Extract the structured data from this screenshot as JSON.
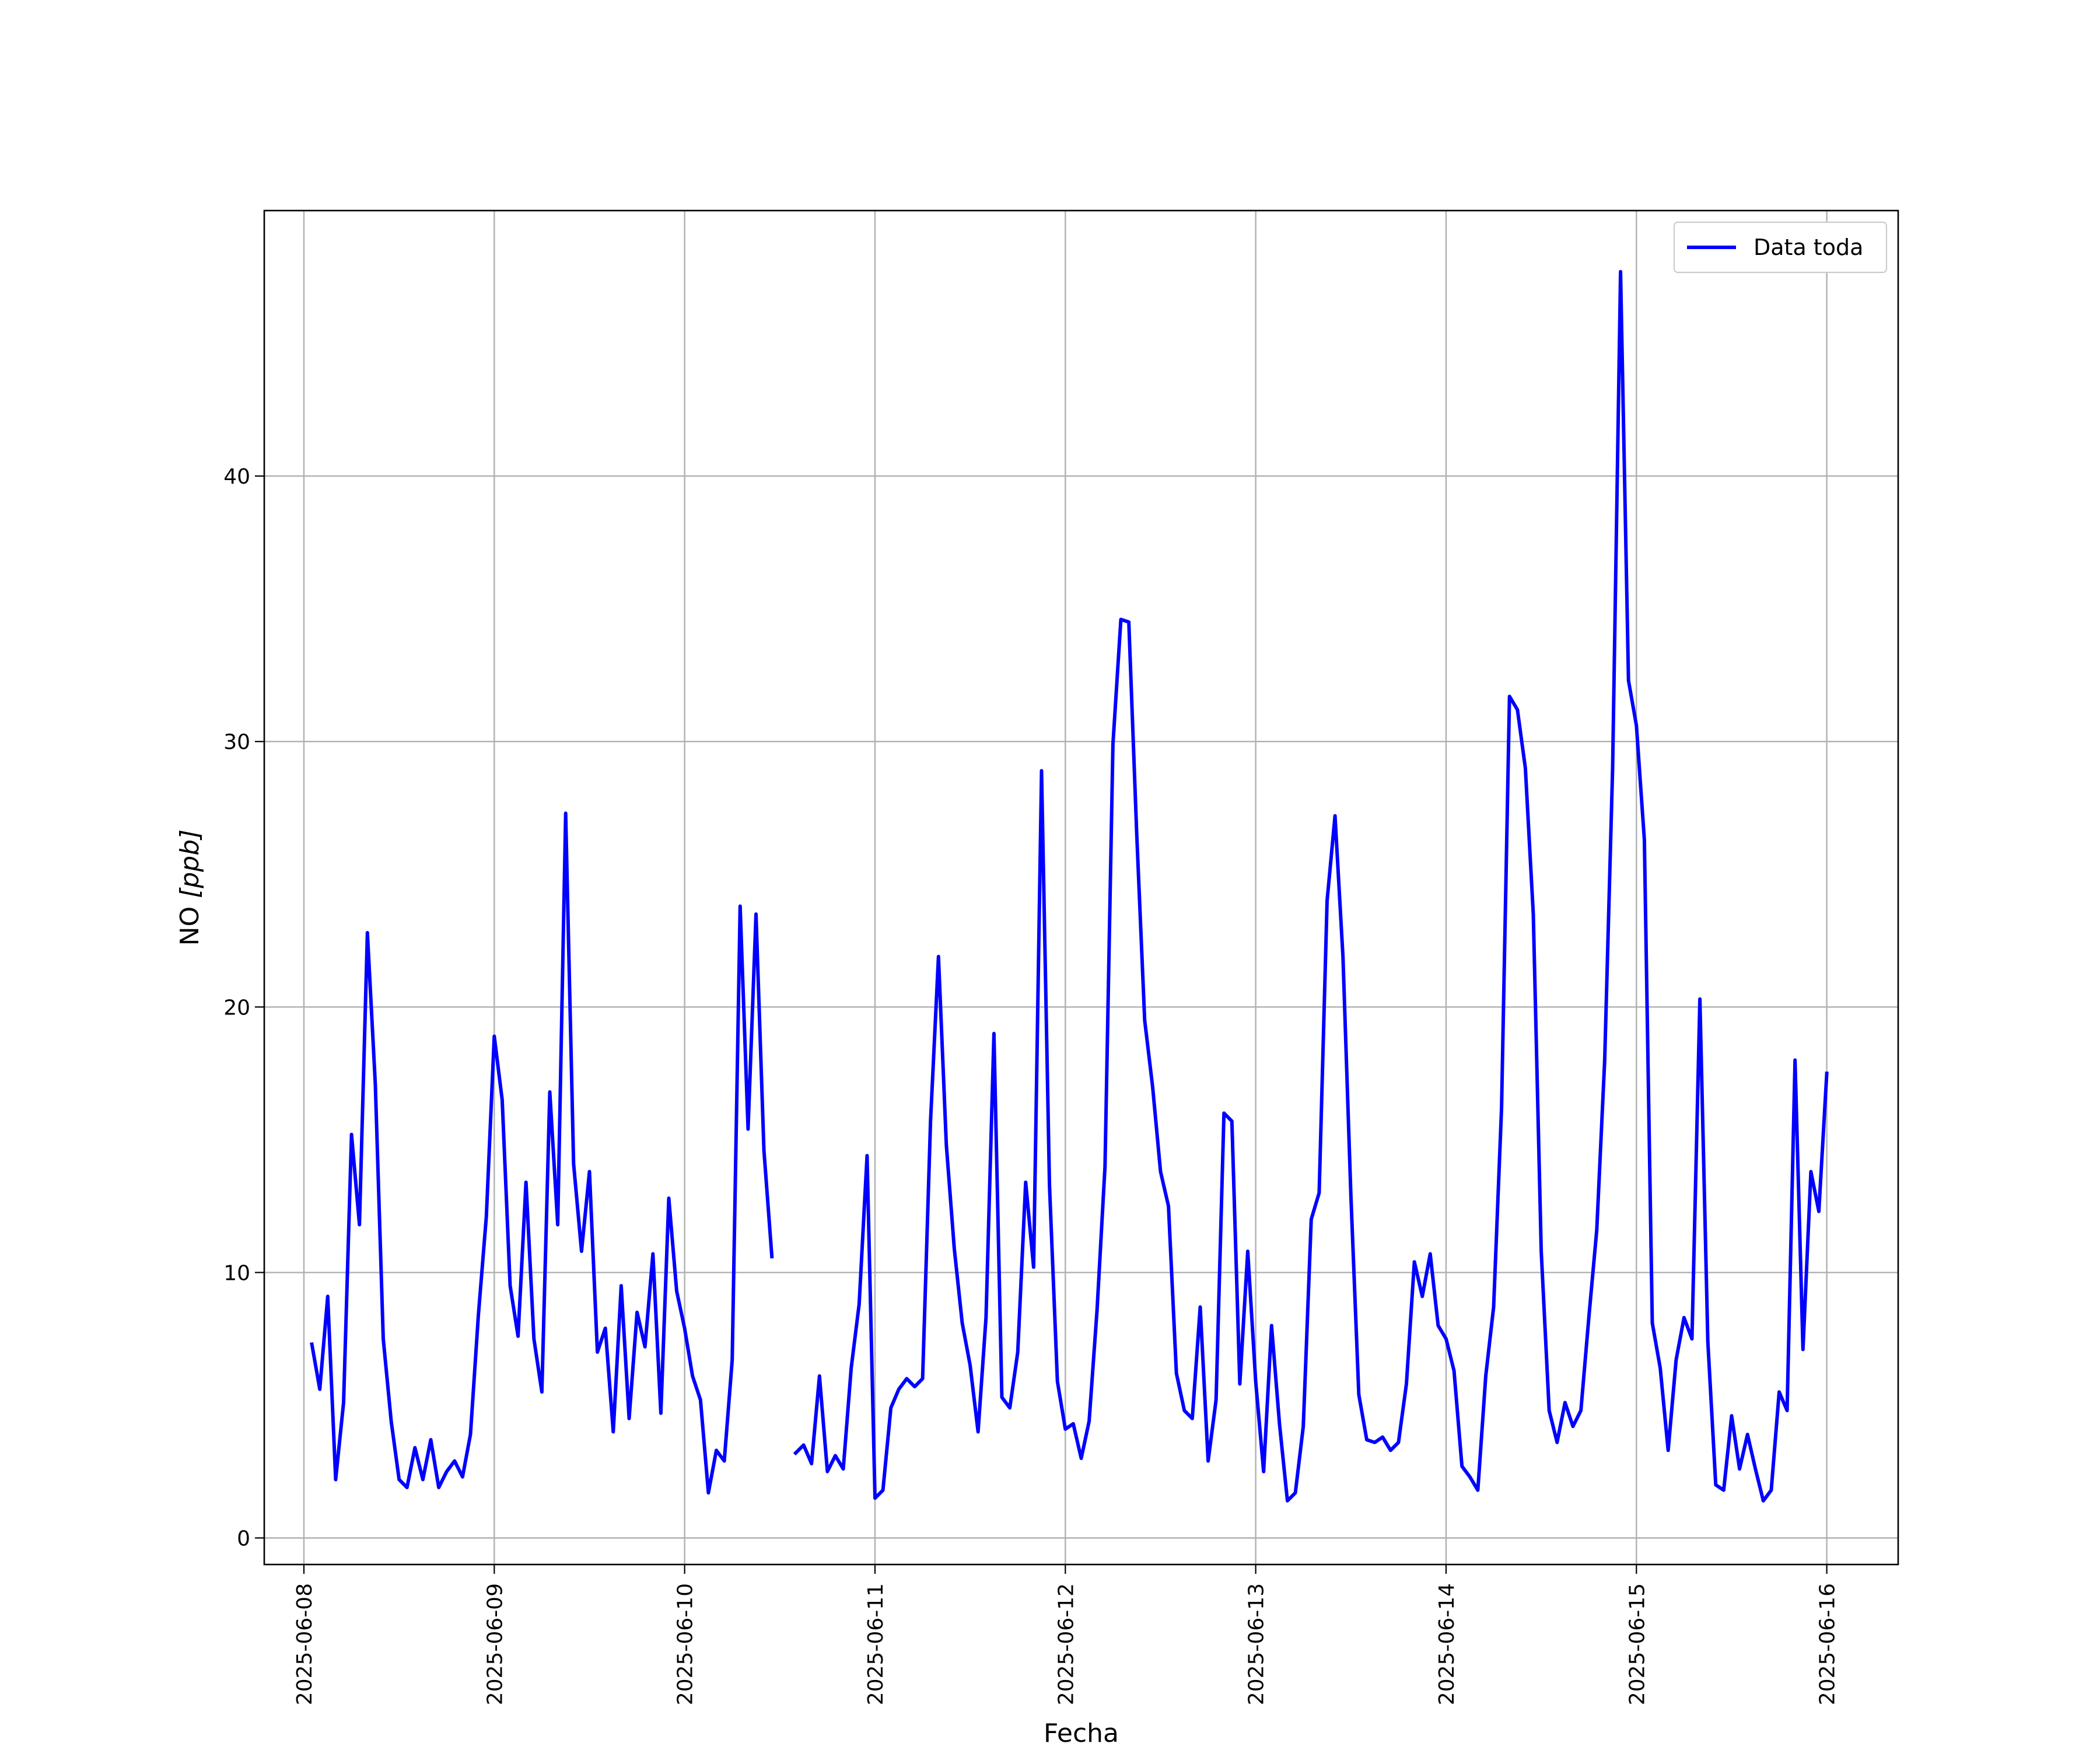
{
  "chart_data": {
    "type": "line",
    "xlabel": "Fecha",
    "ylabel_main": "NO ",
    "ylabel_unit": "[ppb]",
    "x_ticks": [
      "2025-06-08",
      "2025-06-09",
      "2025-06-10",
      "2025-06-11",
      "2025-06-12",
      "2025-06-13",
      "2025-06-14",
      "2025-06-15",
      "2025-06-16"
    ],
    "xlim": [
      "2025-06-07T19:00",
      "2025-06-16T09:00"
    ],
    "y_ticks": [
      0,
      10,
      20,
      30,
      40
    ],
    "ylim": [
      -1,
      50
    ],
    "grid": true,
    "legend_position": "top-right",
    "series": [
      {
        "name": "Data toda",
        "color": "#0000ff",
        "points": [
          [
            "2025-06-08T01:00",
            7.3
          ],
          [
            "2025-06-08T02:00",
            5.6
          ],
          [
            "2025-06-08T03:00",
            9.1
          ],
          [
            "2025-06-08T04:00",
            2.2
          ],
          [
            "2025-06-08T05:00",
            5.1
          ],
          [
            "2025-06-08T06:00",
            15.2
          ],
          [
            "2025-06-08T07:00",
            11.8
          ],
          [
            "2025-06-08T08:00",
            22.8
          ],
          [
            "2025-06-08T09:00",
            17.1
          ],
          [
            "2025-06-08T10:00",
            7.5
          ],
          [
            "2025-06-08T11:00",
            4.4
          ],
          [
            "2025-06-08T12:00",
            2.2
          ],
          [
            "2025-06-08T13:00",
            1.9
          ],
          [
            "2025-06-08T14:00",
            3.4
          ],
          [
            "2025-06-08T15:00",
            2.2
          ],
          [
            "2025-06-08T16:00",
            3.7
          ],
          [
            "2025-06-08T17:00",
            1.9
          ],
          [
            "2025-06-08T18:00",
            2.5
          ],
          [
            "2025-06-08T19:00",
            2.9
          ],
          [
            "2025-06-08T20:00",
            2.3
          ],
          [
            "2025-06-08T21:00",
            3.9
          ],
          [
            "2025-06-08T22:00",
            8.4
          ],
          [
            "2025-06-08T23:00",
            12.1
          ],
          [
            "2025-06-09T00:00",
            18.9
          ],
          [
            "2025-06-09T01:00",
            16.5
          ],
          [
            "2025-06-09T02:00",
            9.5
          ],
          [
            "2025-06-09T03:00",
            7.6
          ],
          [
            "2025-06-09T04:00",
            13.4
          ],
          [
            "2025-06-09T05:00",
            7.5
          ],
          [
            "2025-06-09T06:00",
            5.5
          ],
          [
            "2025-06-09T07:00",
            16.8
          ],
          [
            "2025-06-09T08:00",
            11.8
          ],
          [
            "2025-06-09T09:00",
            27.3
          ],
          [
            "2025-06-09T10:00",
            14.1
          ],
          [
            "2025-06-09T11:00",
            10.8
          ],
          [
            "2025-06-09T12:00",
            13.8
          ],
          [
            "2025-06-09T13:00",
            7.0
          ],
          [
            "2025-06-09T14:00",
            7.9
          ],
          [
            "2025-06-09T15:00",
            4.0
          ],
          [
            "2025-06-09T16:00",
            9.5
          ],
          [
            "2025-06-09T17:00",
            4.5
          ],
          [
            "2025-06-09T18:00",
            8.5
          ],
          [
            "2025-06-09T19:00",
            7.2
          ],
          [
            "2025-06-09T20:00",
            10.7
          ],
          [
            "2025-06-09T21:00",
            4.7
          ],
          [
            "2025-06-09T22:00",
            12.8
          ],
          [
            "2025-06-09T23:00",
            9.3
          ],
          [
            "2025-06-10T00:00",
            7.9
          ],
          [
            "2025-06-10T01:00",
            6.1
          ],
          [
            "2025-06-10T02:00",
            5.2
          ],
          [
            "2025-06-10T03:00",
            1.7
          ],
          [
            "2025-06-10T04:00",
            3.3
          ],
          [
            "2025-06-10T05:00",
            2.9
          ],
          [
            "2025-06-10T06:00",
            6.7
          ],
          [
            "2025-06-10T07:00",
            23.8
          ],
          [
            "2025-06-10T08:00",
            15.4
          ],
          [
            "2025-06-10T09:00",
            23.5
          ],
          [
            "2025-06-10T10:00",
            14.6
          ],
          [
            "2025-06-10T11:00",
            10.6
          ],
          [
            "2025-06-10T12:00",
            null
          ],
          [
            "2025-06-10T13:00",
            null
          ],
          [
            "2025-06-10T14:00",
            3.2
          ],
          [
            "2025-06-10T15:00",
            3.5
          ],
          [
            "2025-06-10T16:00",
            2.8
          ],
          [
            "2025-06-10T17:00",
            6.1
          ],
          [
            "2025-06-10T18:00",
            2.5
          ],
          [
            "2025-06-10T19:00",
            3.1
          ],
          [
            "2025-06-10T20:00",
            2.6
          ],
          [
            "2025-06-10T21:00",
            6.4
          ],
          [
            "2025-06-10T22:00",
            8.8
          ],
          [
            "2025-06-10T23:00",
            14.4
          ],
          [
            "2025-06-11T00:00",
            1.5
          ],
          [
            "2025-06-11T01:00",
            1.8
          ],
          [
            "2025-06-11T02:00",
            4.9
          ],
          [
            "2025-06-11T03:00",
            5.6
          ],
          [
            "2025-06-11T04:00",
            6.0
          ],
          [
            "2025-06-11T05:00",
            5.7
          ],
          [
            "2025-06-11T06:00",
            6.0
          ],
          [
            "2025-06-11T07:00",
            15.7
          ],
          [
            "2025-06-11T08:00",
            21.9
          ],
          [
            "2025-06-11T09:00",
            14.8
          ],
          [
            "2025-06-11T10:00",
            10.9
          ],
          [
            "2025-06-11T11:00",
            8.1
          ],
          [
            "2025-06-11T12:00",
            6.5
          ],
          [
            "2025-06-11T13:00",
            4.0
          ],
          [
            "2025-06-11T14:00",
            8.3
          ],
          [
            "2025-06-11T15:00",
            19.0
          ],
          [
            "2025-06-11T16:00",
            5.3
          ],
          [
            "2025-06-11T17:00",
            4.9
          ],
          [
            "2025-06-11T18:00",
            7.0
          ],
          [
            "2025-06-11T19:00",
            13.4
          ],
          [
            "2025-06-11T20:00",
            10.2
          ],
          [
            "2025-06-11T21:00",
            28.9
          ],
          [
            "2025-06-11T22:00",
            13.3
          ],
          [
            "2025-06-11T23:00",
            5.9
          ],
          [
            "2025-06-12T00:00",
            4.1
          ],
          [
            "2025-06-12T01:00",
            4.3
          ],
          [
            "2025-06-12T02:00",
            3.0
          ],
          [
            "2025-06-12T03:00",
            4.4
          ],
          [
            "2025-06-12T04:00",
            8.6
          ],
          [
            "2025-06-12T05:00",
            14.0
          ],
          [
            "2025-06-12T06:00",
            29.9
          ],
          [
            "2025-06-12T07:00",
            34.6
          ],
          [
            "2025-06-12T08:00",
            34.5
          ],
          [
            "2025-06-12T09:00",
            26.5
          ],
          [
            "2025-06-12T10:00",
            19.5
          ],
          [
            "2025-06-12T11:00",
            17.0
          ],
          [
            "2025-06-12T12:00",
            13.8
          ],
          [
            "2025-06-12T13:00",
            12.5
          ],
          [
            "2025-06-12T14:00",
            6.2
          ],
          [
            "2025-06-12T15:00",
            4.8
          ],
          [
            "2025-06-12T16:00",
            4.5
          ],
          [
            "2025-06-12T17:00",
            8.7
          ],
          [
            "2025-06-12T18:00",
            2.9
          ],
          [
            "2025-06-12T19:00",
            5.2
          ],
          [
            "2025-06-12T20:00",
            16.0
          ],
          [
            "2025-06-12T21:00",
            15.7
          ],
          [
            "2025-06-12T22:00",
            5.8
          ],
          [
            "2025-06-12T23:00",
            10.8
          ],
          [
            "2025-06-13T00:00",
            5.9
          ],
          [
            "2025-06-13T01:00",
            2.5
          ],
          [
            "2025-06-13T02:00",
            8.0
          ],
          [
            "2025-06-13T03:00",
            4.3
          ],
          [
            "2025-06-13T04:00",
            1.4
          ],
          [
            "2025-06-13T05:00",
            1.7
          ],
          [
            "2025-06-13T06:00",
            4.2
          ],
          [
            "2025-06-13T07:00",
            12.0
          ],
          [
            "2025-06-13T08:00",
            13.0
          ],
          [
            "2025-06-13T09:00",
            24.0
          ],
          [
            "2025-06-13T10:00",
            27.2
          ],
          [
            "2025-06-13T11:00",
            21.9
          ],
          [
            "2025-06-13T12:00",
            12.9
          ],
          [
            "2025-06-13T13:00",
            5.4
          ],
          [
            "2025-06-13T14:00",
            3.7
          ],
          [
            "2025-06-13T15:00",
            3.6
          ],
          [
            "2025-06-13T16:00",
            3.8
          ],
          [
            "2025-06-13T17:00",
            3.3
          ],
          [
            "2025-06-13T18:00",
            3.6
          ],
          [
            "2025-06-13T19:00",
            5.8
          ],
          [
            "2025-06-13T20:00",
            10.4
          ],
          [
            "2025-06-13T21:00",
            9.1
          ],
          [
            "2025-06-13T22:00",
            10.7
          ],
          [
            "2025-06-13T23:00",
            8.0
          ],
          [
            "2025-06-14T00:00",
            7.5
          ],
          [
            "2025-06-14T01:00",
            6.3
          ],
          [
            "2025-06-14T02:00",
            2.7
          ],
          [
            "2025-06-14T03:00",
            2.3
          ],
          [
            "2025-06-14T04:00",
            1.8
          ],
          [
            "2025-06-14T05:00",
            6.1
          ],
          [
            "2025-06-14T06:00",
            8.7
          ],
          [
            "2025-06-14T07:00",
            16.2
          ],
          [
            "2025-06-14T08:00",
            31.7
          ],
          [
            "2025-06-14T09:00",
            31.2
          ],
          [
            "2025-06-14T10:00",
            29.0
          ],
          [
            "2025-06-14T11:00",
            23.5
          ],
          [
            "2025-06-14T12:00",
            10.8
          ],
          [
            "2025-06-14T13:00",
            4.8
          ],
          [
            "2025-06-14T14:00",
            3.6
          ],
          [
            "2025-06-14T15:00",
            5.1
          ],
          [
            "2025-06-14T16:00",
            4.2
          ],
          [
            "2025-06-14T17:00",
            4.8
          ],
          [
            "2025-06-14T18:00",
            8.3
          ],
          [
            "2025-06-14T19:00",
            11.6
          ],
          [
            "2025-06-14T20:00",
            18.0
          ],
          [
            "2025-06-14T21:00",
            29.0
          ],
          [
            "2025-06-14T22:00",
            47.7
          ],
          [
            "2025-06-14T23:00",
            32.3
          ],
          [
            "2025-06-15T00:00",
            30.6
          ],
          [
            "2025-06-15T01:00",
            26.3
          ],
          [
            "2025-06-15T02:00",
            8.1
          ],
          [
            "2025-06-15T03:00",
            6.4
          ],
          [
            "2025-06-15T04:00",
            3.3
          ],
          [
            "2025-06-15T05:00",
            6.7
          ],
          [
            "2025-06-15T06:00",
            8.3
          ],
          [
            "2025-06-15T07:00",
            7.5
          ],
          [
            "2025-06-15T08:00",
            20.3
          ],
          [
            "2025-06-15T09:00",
            7.4
          ],
          [
            "2025-06-15T10:00",
            2.0
          ],
          [
            "2025-06-15T11:00",
            1.8
          ],
          [
            "2025-06-15T12:00",
            4.6
          ],
          [
            "2025-06-15T13:00",
            2.6
          ],
          [
            "2025-06-15T14:00",
            3.9
          ],
          [
            "2025-06-15T15:00",
            2.6
          ],
          [
            "2025-06-15T16:00",
            1.4
          ],
          [
            "2025-06-15T17:00",
            1.8
          ],
          [
            "2025-06-15T18:00",
            5.5
          ],
          [
            "2025-06-15T19:00",
            4.8
          ],
          [
            "2025-06-15T20:00",
            18.0
          ],
          [
            "2025-06-15T21:00",
            7.1
          ],
          [
            "2025-06-15T22:00",
            13.8
          ],
          [
            "2025-06-15T23:00",
            12.3
          ],
          [
            "2025-06-16T00:00",
            17.5
          ]
        ]
      }
    ]
  }
}
